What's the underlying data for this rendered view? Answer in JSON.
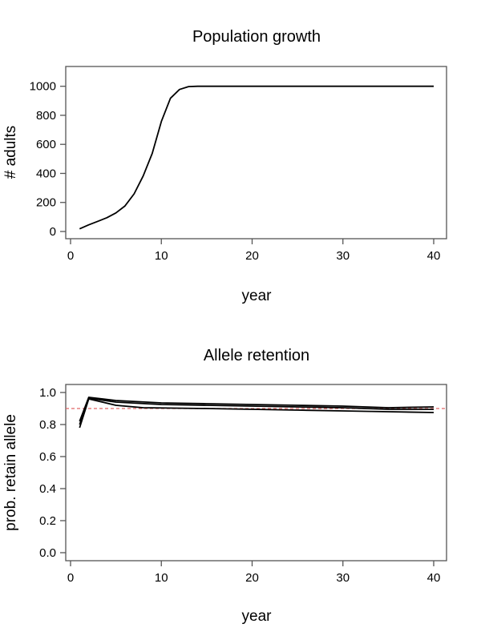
{
  "chart_data": [
    {
      "type": "line",
      "title": "Population growth",
      "xlabel": "year",
      "ylabel": "# adults",
      "xlim": [
        0,
        40
      ],
      "ylim": [
        0,
        1000
      ],
      "xticks": [
        0,
        10,
        20,
        30,
        40
      ],
      "yticks": [
        0,
        200,
        400,
        600,
        800,
        1000
      ],
      "grid": false,
      "series": [
        {
          "color": "#000000",
          "x": [
            1,
            2,
            3,
            4,
            5,
            6,
            7,
            8,
            9,
            10,
            11,
            12,
            13,
            14,
            15,
            16,
            17,
            18,
            19,
            20,
            21,
            22,
            23,
            24,
            25,
            26,
            27,
            28,
            29,
            30,
            31,
            32,
            33,
            34,
            35,
            36,
            37,
            38,
            39,
            40
          ],
          "y": [
            18,
            46,
            70,
            95,
            128,
            176,
            259,
            382,
            538,
            758,
            917,
            978,
            998,
            1000,
            1000,
            1000,
            1000,
            1000,
            1000,
            1000,
            1000,
            1000,
            1000,
            1000,
            1000,
            1000,
            1000,
            1000,
            1000,
            1000,
            1000,
            1000,
            1000,
            1000,
            1000,
            1000,
            1000,
            1000,
            1000,
            1000
          ]
        }
      ]
    },
    {
      "type": "line",
      "title": "Allele retention",
      "xlabel": "year",
      "ylabel": "prob. retain allele",
      "xlim": [
        0,
        40
      ],
      "ylim": [
        0,
        1
      ],
      "xticks": [
        0,
        10,
        20,
        30,
        40
      ],
      "yticks": [
        "0.0",
        "0.2",
        "0.4",
        "0.6",
        "0.8",
        "1.0"
      ],
      "grid": false,
      "reference_line": {
        "y": 0.9,
        "color": "#e06666",
        "style": "dashed"
      },
      "series": [
        {
          "color": "#000000",
          "x": [
            1,
            2,
            5,
            10,
            15,
            20,
            25,
            30,
            35,
            40
          ],
          "y": [
            0.82,
            0.97,
            0.95,
            0.935,
            0.93,
            0.925,
            0.92,
            0.915,
            0.905,
            0.91
          ]
        },
        {
          "color": "#000000",
          "x": [
            1,
            2,
            5,
            10,
            15,
            20,
            25,
            30,
            35,
            40
          ],
          "y": [
            0.8,
            0.965,
            0.94,
            0.925,
            0.92,
            0.915,
            0.91,
            0.905,
            0.895,
            0.895
          ]
        },
        {
          "color": "#000000",
          "x": [
            1,
            2,
            5,
            8,
            15,
            20,
            25,
            30,
            35,
            40
          ],
          "y": [
            0.78,
            0.96,
            0.92,
            0.905,
            0.9,
            0.895,
            0.89,
            0.885,
            0.88,
            0.875
          ]
        }
      ]
    }
  ]
}
